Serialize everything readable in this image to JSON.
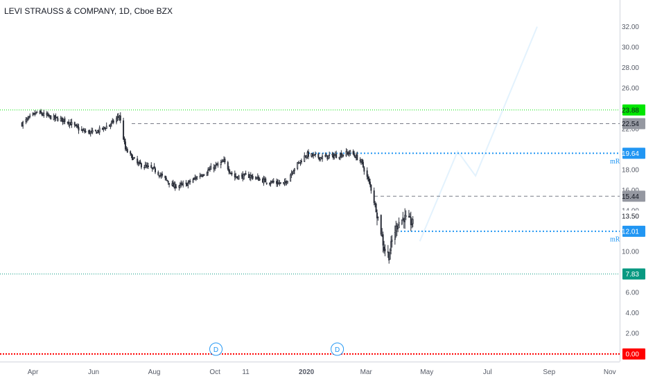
{
  "title": "LEVI STRAUSS & COMPANY, 1D, Cboe BZX",
  "chart_data": {
    "type": "candlestick",
    "symbol": "LEVI STRAUSS & COMPANY",
    "interval": "1D",
    "exchange": "Cboe BZX",
    "ylim": [
      0,
      32.5
    ],
    "y_ticks": [
      "32.00",
      "30.00",
      "28.00",
      "26.00",
      "22.00",
      "18.00",
      "16.00",
      "14.00",
      "10.00",
      "8.00",
      "6.00",
      "4.00",
      "2.00"
    ],
    "x_ticks": [
      {
        "date": "2019-04-01",
        "label": "Apr",
        "bold": false
      },
      {
        "date": "2019-06-01",
        "label": "Jun",
        "bold": false
      },
      {
        "date": "2019-08-01",
        "label": "Aug",
        "bold": false
      },
      {
        "date": "2019-10-01",
        "label": "Oct",
        "bold": false
      },
      {
        "date": "2019-11-01",
        "label": "11",
        "bold": false
      },
      {
        "date": "2020-01-01",
        "label": "2020",
        "bold": true
      },
      {
        "date": "2020-03-01",
        "label": "Mar",
        "bold": false
      },
      {
        "date": "2020-05-01",
        "label": "May",
        "bold": false
      },
      {
        "date": "2020-07-01",
        "label": "Jul",
        "bold": false
      },
      {
        "date": "2020-09-01",
        "label": "Sep",
        "bold": false
      },
      {
        "date": "2020-11-01",
        "label": "Nov",
        "bold": false
      }
    ],
    "price_path": [
      [
        "2019-03-21",
        22.5
      ],
      [
        "2019-04-05",
        23.6
      ],
      [
        "2019-04-20",
        23.1
      ],
      [
        "2019-05-05",
        22.8
      ],
      [
        "2019-05-20",
        21.8
      ],
      [
        "2019-06-01",
        21.6
      ],
      [
        "2019-06-10",
        22.0
      ],
      [
        "2019-06-20",
        22.6
      ],
      [
        "2019-06-27",
        23.3
      ],
      [
        "2019-07-03",
        20.0
      ],
      [
        "2019-07-15",
        18.6
      ],
      [
        "2019-08-01",
        18.0
      ],
      [
        "2019-08-20",
        16.4
      ],
      [
        "2019-09-01",
        16.5
      ],
      [
        "2019-09-15",
        17.4
      ],
      [
        "2019-10-01",
        18.3
      ],
      [
        "2019-10-10",
        18.8
      ],
      [
        "2019-10-20",
        17.3
      ],
      [
        "2019-11-05",
        17.4
      ],
      [
        "2019-11-20",
        16.9
      ],
      [
        "2019-12-10",
        16.6
      ],
      [
        "2019-12-20",
        18.2
      ],
      [
        "2020-01-01",
        19.5
      ],
      [
        "2020-01-15",
        19.2
      ],
      [
        "2020-02-01",
        19.4
      ],
      [
        "2020-02-15",
        19.7
      ],
      [
        "2020-02-25",
        18.8
      ],
      [
        "2020-03-05",
        16.5
      ],
      [
        "2020-03-10",
        14.5
      ],
      [
        "2020-03-15",
        12.5
      ],
      [
        "2020-03-19",
        10.3
      ],
      [
        "2020-03-24",
        9.6
      ],
      [
        "2020-03-28",
        11.5
      ],
      [
        "2020-04-02",
        12.8
      ],
      [
        "2020-04-08",
        13.3
      ],
      [
        "2020-04-13",
        13.0
      ],
      [
        "2020-04-17",
        12.7
      ]
    ],
    "projection_path": [
      [
        "2020-04-24",
        11.0
      ],
      [
        "2020-06-01",
        19.8
      ],
      [
        "2020-06-19",
        17.4
      ],
      [
        "2020-08-20",
        32.0
      ]
    ],
    "levels": [
      {
        "value": 23.88,
        "label": "23.88",
        "style": "dotted",
        "color": "#00e600",
        "badge_bg": "#00e600",
        "badge_fg": "#131722"
      },
      {
        "value": 22.54,
        "label": "22.54",
        "style": "dashed",
        "color": "#787b86",
        "badge_bg": "#9598a1",
        "badge_fg": "#131722"
      },
      {
        "value": 19.64,
        "label": "19.64",
        "style": "dotted-thick",
        "color": "#2196f3",
        "badge_bg": "#2196f3",
        "badge_fg": "#ffffff",
        "marker": "mR"
      },
      {
        "value": 15.44,
        "label": "15.44",
        "style": "dashed",
        "color": "#787b86",
        "badge_bg": "#9598a1",
        "badge_fg": "#131722"
      },
      {
        "value": 13.5,
        "label": "13.50",
        "style": "none",
        "color": "#131722",
        "badge_bg": "#ffffff",
        "badge_fg": "#131722"
      },
      {
        "value": 12.01,
        "label": "12.01",
        "style": "dotted-thick",
        "color": "#2196f3",
        "badge_bg": "#2196f3",
        "badge_fg": "#ffffff",
        "marker": "mR"
      },
      {
        "value": 7.83,
        "label": "7.83",
        "style": "dotted",
        "color": "#089981",
        "badge_bg": "#089981",
        "badge_fg": "#ffffff"
      },
      {
        "value": 0.0,
        "label": "0.00",
        "style": "dotted-red",
        "color": "#ff0000",
        "badge_bg": "#ff0000",
        "badge_fg": "#ffffff"
      }
    ],
    "events": [
      {
        "date": "2019-10-02",
        "label": "D"
      },
      {
        "date": "2020-02-01",
        "label": "D"
      }
    ],
    "colors": {
      "candle": "#2a2e39",
      "projection": "#e3f2fd",
      "axis_text": "#555a66"
    }
  }
}
